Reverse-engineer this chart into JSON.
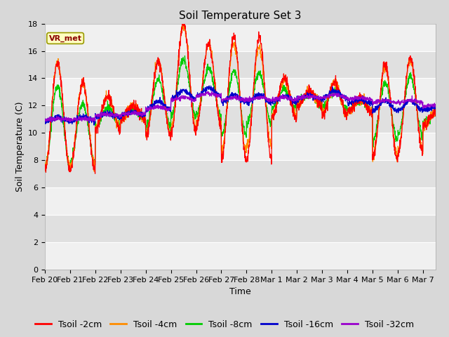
{
  "title": "Soil Temperature Set 3",
  "xlabel": "Time",
  "ylabel": "Soil Temperature (C)",
  "xlim_days": [
    0,
    15.5
  ],
  "ylim": [
    0,
    18
  ],
  "yticks": [
    0,
    2,
    4,
    6,
    8,
    10,
    12,
    14,
    16,
    18
  ],
  "xtick_labels": [
    "Feb 20",
    "Feb 21",
    "Feb 22",
    "Feb 23",
    "Feb 24",
    "Feb 25",
    "Feb 26",
    "Feb 27",
    "Feb 28",
    "Mar 1",
    "Mar 2",
    "Mar 3",
    "Mar 4",
    "Mar 5",
    "Mar 6",
    "Mar 7"
  ],
  "xtick_positions": [
    0,
    1,
    2,
    3,
    4,
    5,
    6,
    7,
    8,
    9,
    10,
    11,
    12,
    13,
    14,
    15
  ],
  "series_colors": [
    "#FF0000",
    "#FF8C00",
    "#00CC00",
    "#0000CC",
    "#9900CC"
  ],
  "series_labels": [
    "Tsoil -2cm",
    "Tsoil -4cm",
    "Tsoil -8cm",
    "Tsoil -16cm",
    "Tsoil -32cm"
  ],
  "legend_label": "VR_met",
  "band_light": "#F0F0F0",
  "band_dark": "#E0E0E0",
  "fig_bg": "#D8D8D8",
  "title_fontsize": 11,
  "axis_fontsize": 9,
  "tick_fontsize": 8,
  "legend_fontsize": 9
}
